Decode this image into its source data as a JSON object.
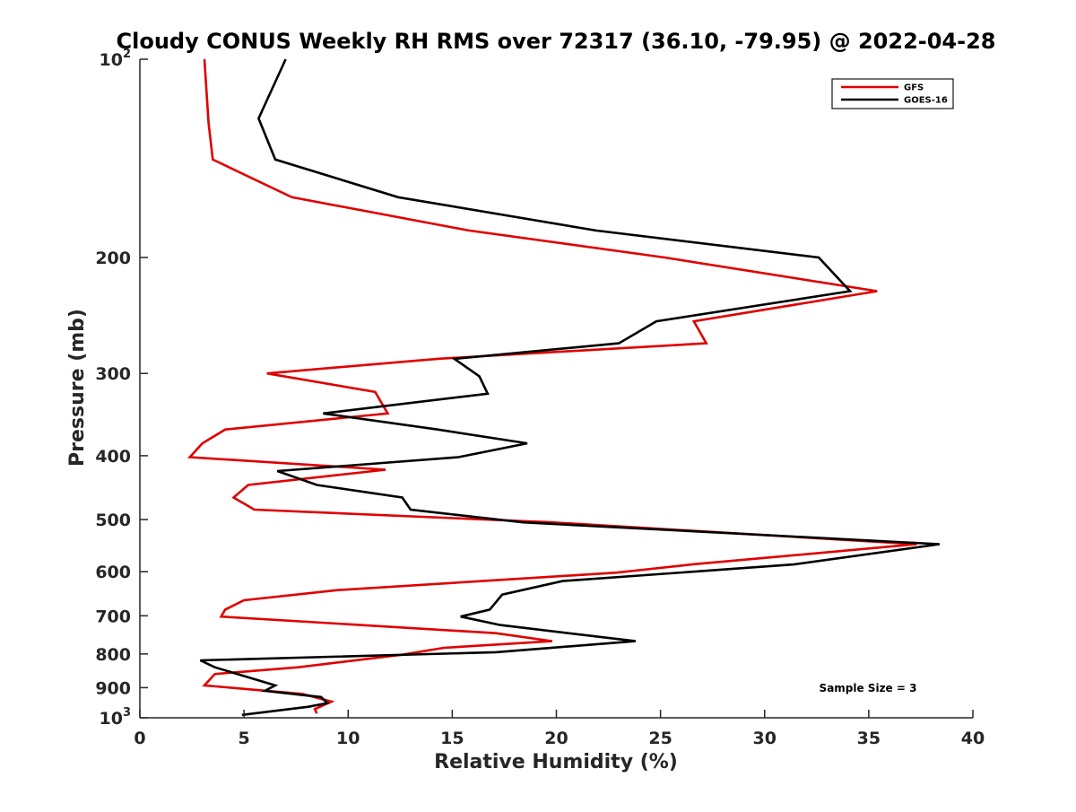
{
  "chart_data": {
    "type": "line",
    "title": "Cloudy CONUS Weekly RH RMS over 72317 (36.10, -79.95) @ 2022-04-28",
    "xlabel": "Relative Humidity (%)",
    "ylabel": "Pressure (mb)",
    "xlim": [
      0,
      40
    ],
    "ylim": [
      100,
      1000
    ],
    "y_scale": "log",
    "y_reversed": true,
    "grid": false,
    "legend_position": "top-right",
    "x_ticks": [
      {
        "value": 0,
        "label": "0"
      },
      {
        "value": 5,
        "label": "5"
      },
      {
        "value": 10,
        "label": "10"
      },
      {
        "value": 15,
        "label": "15"
      },
      {
        "value": 20,
        "label": "20"
      },
      {
        "value": 25,
        "label": "25"
      },
      {
        "value": 30,
        "label": "30"
      },
      {
        "value": 35,
        "label": "35"
      },
      {
        "value": 40,
        "label": "40"
      }
    ],
    "y_ticks": [
      {
        "value": 100,
        "label": "",
        "base": "10",
        "exp": "2"
      },
      {
        "value": 200,
        "label": "200"
      },
      {
        "value": 300,
        "label": "300"
      },
      {
        "value": 400,
        "label": "400"
      },
      {
        "value": 500,
        "label": "500"
      },
      {
        "value": 600,
        "label": "600"
      },
      {
        "value": 700,
        "label": "700"
      },
      {
        "value": 800,
        "label": "800"
      },
      {
        "value": 900,
        "label": "900"
      },
      {
        "value": 1000,
        "label": "",
        "base": "10",
        "exp": "3"
      }
    ],
    "series": [
      {
        "name": "GFS",
        "color": "#e00000",
        "points": [
          {
            "x": 3.1,
            "y": 100
          },
          {
            "x": 3.3,
            "y": 125
          },
          {
            "x": 3.5,
            "y": 142
          },
          {
            "x": 7.3,
            "y": 162
          },
          {
            "x": 15.8,
            "y": 182
          },
          {
            "x": 25.2,
            "y": 200
          },
          {
            "x": 35.4,
            "y": 225
          },
          {
            "x": 26.6,
            "y": 250
          },
          {
            "x": 27.2,
            "y": 270
          },
          {
            "x": 14.3,
            "y": 285
          },
          {
            "x": 6.1,
            "y": 300
          },
          {
            "x": 11.3,
            "y": 320
          },
          {
            "x": 11.9,
            "y": 345
          },
          {
            "x": 4.1,
            "y": 365
          },
          {
            "x": 3.0,
            "y": 383
          },
          {
            "x": 2.4,
            "y": 402
          },
          {
            "x": 11.8,
            "y": 420
          },
          {
            "x": 5.2,
            "y": 443
          },
          {
            "x": 4.5,
            "y": 463
          },
          {
            "x": 5.5,
            "y": 483
          },
          {
            "x": 19.8,
            "y": 505
          },
          {
            "x": 37.3,
            "y": 545
          },
          {
            "x": 26.5,
            "y": 585
          },
          {
            "x": 22.9,
            "y": 602
          },
          {
            "x": 9.5,
            "y": 640
          },
          {
            "x": 5.0,
            "y": 663
          },
          {
            "x": 4.1,
            "y": 685
          },
          {
            "x": 3.9,
            "y": 702
          },
          {
            "x": 17.1,
            "y": 744
          },
          {
            "x": 19.8,
            "y": 765
          },
          {
            "x": 14.6,
            "y": 783
          },
          {
            "x": 12.6,
            "y": 802
          },
          {
            "x": 7.6,
            "y": 838
          },
          {
            "x": 3.6,
            "y": 858
          },
          {
            "x": 3.1,
            "y": 893
          },
          {
            "x": 7.8,
            "y": 920
          },
          {
            "x": 9.2,
            "y": 945
          },
          {
            "x": 8.4,
            "y": 970
          },
          {
            "x": 8.5,
            "y": 985
          }
        ]
      },
      {
        "name": "GOES-16",
        "color": "#000000",
        "points": [
          {
            "x": 7.0,
            "y": 100
          },
          {
            "x": 5.7,
            "y": 123
          },
          {
            "x": 6.5,
            "y": 142
          },
          {
            "x": 12.4,
            "y": 162
          },
          {
            "x": 21.9,
            "y": 182
          },
          {
            "x": 32.6,
            "y": 200
          },
          {
            "x": 34.1,
            "y": 225
          },
          {
            "x": 24.8,
            "y": 250
          },
          {
            "x": 23.0,
            "y": 270
          },
          {
            "x": 15.1,
            "y": 285
          },
          {
            "x": 16.3,
            "y": 303
          },
          {
            "x": 16.7,
            "y": 322
          },
          {
            "x": 8.8,
            "y": 345
          },
          {
            "x": 14.3,
            "y": 365
          },
          {
            "x": 18.6,
            "y": 383
          },
          {
            "x": 15.3,
            "y": 402
          },
          {
            "x": 6.6,
            "y": 422
          },
          {
            "x": 8.5,
            "y": 443
          },
          {
            "x": 12.6,
            "y": 463
          },
          {
            "x": 13.0,
            "y": 483
          },
          {
            "x": 18.4,
            "y": 505
          },
          {
            "x": 38.4,
            "y": 545
          },
          {
            "x": 31.4,
            "y": 585
          },
          {
            "x": 20.3,
            "y": 620
          },
          {
            "x": 17.4,
            "y": 650
          },
          {
            "x": 16.8,
            "y": 685
          },
          {
            "x": 15.4,
            "y": 702
          },
          {
            "x": 17.3,
            "y": 723
          },
          {
            "x": 23.8,
            "y": 765
          },
          {
            "x": 17.1,
            "y": 795
          },
          {
            "x": 2.9,
            "y": 818
          },
          {
            "x": 3.6,
            "y": 838
          },
          {
            "x": 6.5,
            "y": 893
          },
          {
            "x": 6.0,
            "y": 910
          },
          {
            "x": 8.7,
            "y": 930
          },
          {
            "x": 9.0,
            "y": 950
          },
          {
            "x": 8.1,
            "y": 962
          },
          {
            "x": 4.9,
            "y": 990
          }
        ]
      }
    ],
    "annotations": [
      {
        "text": "Sample Size = 3",
        "position": "bottom-right"
      }
    ]
  }
}
